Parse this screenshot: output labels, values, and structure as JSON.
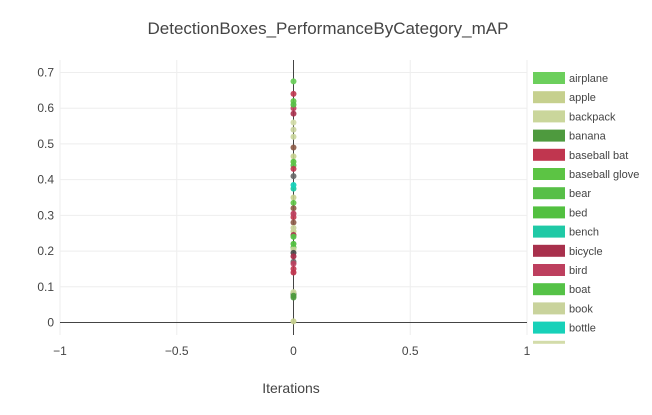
{
  "chart_data": {
    "type": "scatter",
    "title": "DetectionBoxes_PerformanceByCategory_mAP",
    "xlabel": "Iterations",
    "ylabel": "",
    "xlim": [
      -1,
      1
    ],
    "ylim": [
      -0.035,
      0.735
    ],
    "x_ticks": [
      -1,
      -0.5,
      0,
      0.5,
      1
    ],
    "x_tick_labels": [
      "−1",
      "−0.5",
      "0",
      "0.5",
      "1"
    ],
    "y_ticks": [
      0,
      0.1,
      0.2,
      0.3,
      0.4,
      0.5,
      0.6,
      0.7
    ],
    "y_tick_labels": [
      "0",
      "0.1",
      "0.2",
      "0.3",
      "0.4",
      "0.5",
      "0.6",
      "0.7"
    ],
    "grid": true,
    "legend_position": "right",
    "series": [
      {
        "name": "airplane",
        "color": "#6ccf5c",
        "x": [
          0
        ],
        "y": [
          0.675
        ]
      },
      {
        "name": "apple",
        "color": "#c6d08e",
        "x": [
          0
        ],
        "y": [
          0.003
        ]
      },
      {
        "name": "backpack",
        "color": "#cad69b",
        "x": [
          0
        ],
        "y": [
          0.085
        ]
      },
      {
        "name": "banana",
        "color": "#4e9a3e",
        "x": [
          0
        ],
        "y": [
          0.075
        ]
      },
      {
        "name": "baseball bat",
        "color": "#c0364f",
        "x": [
          0
        ],
        "y": [
          0.14
        ]
      },
      {
        "name": "baseball glove",
        "color": "#5cc444",
        "x": [
          0
        ],
        "y": [
          0.45
        ]
      },
      {
        "name": "bear",
        "color": "#57bf47",
        "x": [
          0
        ],
        "y": [
          0.61
        ]
      },
      {
        "name": "bed",
        "color": "#52c040",
        "x": [
          0
        ],
        "y": [
          0.22
        ]
      },
      {
        "name": "bench",
        "color": "#1fc9a6",
        "x": [
          0
        ],
        "y": [
          0.375
        ]
      },
      {
        "name": "bicycle",
        "color": "#a8304c",
        "x": [
          0
        ],
        "y": [
          0.185
        ]
      },
      {
        "name": "bird",
        "color": "#bd3f5e",
        "x": [
          0
        ],
        "y": [
          0.305
        ]
      },
      {
        "name": "boat",
        "color": "#55c247",
        "x": [
          0
        ],
        "y": [
          0.24
        ]
      },
      {
        "name": "book",
        "color": "#c9d39c",
        "x": [
          0
        ],
        "y": [
          0.265
        ]
      },
      {
        "name": "bottle",
        "color": "#17d1b9",
        "x": [
          0
        ],
        "y": [
          0.385
        ]
      },
      {
        "name": "",
        "color": "#d3dcaa",
        "x": [
          0
        ],
        "y": [
          0.56
        ]
      }
    ],
    "extra_points": [
      {
        "y": 0.64,
        "color": "#c0364f"
      },
      {
        "y": 0.62,
        "color": "#5cc444"
      },
      {
        "y": 0.6,
        "color": "#bd3f5e"
      },
      {
        "y": 0.585,
        "color": "#a8304c"
      },
      {
        "y": 0.54,
        "color": "#c9d39c"
      },
      {
        "y": 0.52,
        "color": "#cad69b"
      },
      {
        "y": 0.49,
        "color": "#8c5a46"
      },
      {
        "y": 0.465,
        "color": "#c6d08e"
      },
      {
        "y": 0.44,
        "color": "#57bf47"
      },
      {
        "y": 0.43,
        "color": "#c0364f"
      },
      {
        "y": 0.41,
        "color": "#666666"
      },
      {
        "y": 0.35,
        "color": "#c6d08e"
      },
      {
        "y": 0.335,
        "color": "#5cc444"
      },
      {
        "y": 0.32,
        "color": "#8c5a46"
      },
      {
        "y": 0.295,
        "color": "#c0364f"
      },
      {
        "y": 0.28,
        "color": "#8c5a46"
      },
      {
        "y": 0.255,
        "color": "#c6d08e"
      },
      {
        "y": 0.245,
        "color": "#a8304c"
      },
      {
        "y": 0.21,
        "color": "#52c040"
      },
      {
        "y": 0.205,
        "color": "#c9d39c"
      },
      {
        "y": 0.195,
        "color": "#444444"
      },
      {
        "y": 0.17,
        "color": "#666666"
      },
      {
        "y": 0.165,
        "color": "#bd3f5e"
      },
      {
        "y": 0.15,
        "color": "#c0364f"
      },
      {
        "y": 0.08,
        "color": "#444444"
      },
      {
        "y": 0.07,
        "color": "#4e9a3e"
      }
    ]
  }
}
